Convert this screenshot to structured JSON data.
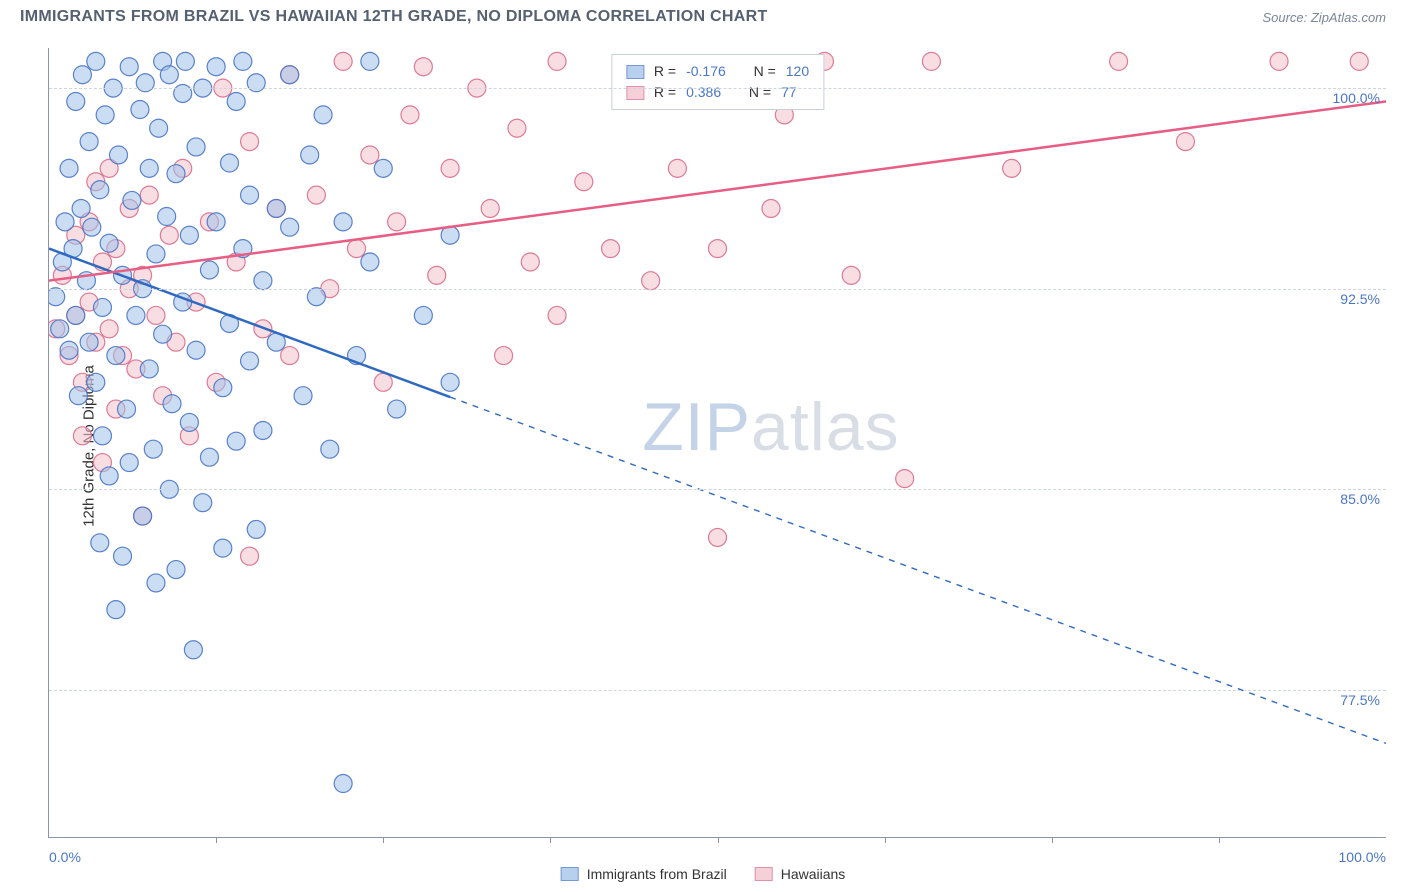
{
  "header": {
    "title": "IMMIGRANTS FROM BRAZIL VS HAWAIIAN 12TH GRADE, NO DIPLOMA CORRELATION CHART",
    "source": "Source: ZipAtlas.com"
  },
  "chart": {
    "type": "scatter",
    "ylabel": "12th Grade, No Diploma",
    "xlim": [
      0,
      100
    ],
    "ylim": [
      72,
      101.5
    ],
    "x_axis_start_label": "0.0%",
    "x_axis_end_label": "100.0%",
    "xtick_positions": [
      12.5,
      25,
      37.5,
      50,
      62.5,
      75,
      87.5
    ],
    "yticks": [
      77.5,
      85.0,
      92.5,
      100.0
    ],
    "ytick_labels": [
      "77.5%",
      "85.0%",
      "92.5%",
      "100.0%"
    ],
    "background_color": "#ffffff",
    "grid_color": "#cfd5df",
    "axis_color": "#8a94a6",
    "tick_label_color": "#4a76c7",
    "watermark_zip": "ZIP",
    "watermark_rest": "atlas",
    "series": [
      {
        "name": "Immigrants from Brazil",
        "key": "brazil",
        "color_fill": "#9ec1e8",
        "color_stroke": "#4a76c7",
        "r_value": "-0.176",
        "n_value": "120",
        "trend": {
          "x1": 0,
          "y1": 94.0,
          "x2": 100,
          "y2": 75.5,
          "solid_until_x": 30,
          "color": "#2f6ac0",
          "width": 2.5
        },
        "points": [
          [
            0.5,
            92.2
          ],
          [
            0.8,
            91.0
          ],
          [
            1.0,
            93.5
          ],
          [
            1.2,
            95.0
          ],
          [
            1.5,
            90.2
          ],
          [
            1.5,
            97.0
          ],
          [
            1.8,
            94.0
          ],
          [
            2.0,
            99.5
          ],
          [
            2.0,
            91.5
          ],
          [
            2.2,
            88.5
          ],
          [
            2.4,
            95.5
          ],
          [
            2.5,
            100.5
          ],
          [
            2.8,
            92.8
          ],
          [
            3.0,
            98.0
          ],
          [
            3.0,
            90.5
          ],
          [
            3.2,
            94.8
          ],
          [
            3.5,
            101.0
          ],
          [
            3.5,
            89.0
          ],
          [
            3.8,
            83.0
          ],
          [
            3.8,
            96.2
          ],
          [
            4.0,
            91.8
          ],
          [
            4.0,
            87.0
          ],
          [
            4.2,
            99.0
          ],
          [
            4.5,
            85.5
          ],
          [
            4.5,
            94.2
          ],
          [
            4.8,
            100.0
          ],
          [
            5.0,
            80.5
          ],
          [
            5.0,
            90.0
          ],
          [
            5.2,
            97.5
          ],
          [
            5.5,
            82.5
          ],
          [
            5.5,
            93.0
          ],
          [
            5.8,
            88.0
          ],
          [
            6.0,
            100.8
          ],
          [
            6.0,
            86.0
          ],
          [
            6.2,
            95.8
          ],
          [
            6.5,
            91.5
          ],
          [
            6.8,
            99.2
          ],
          [
            7.0,
            84.0
          ],
          [
            7.0,
            92.5
          ],
          [
            7.2,
            100.2
          ],
          [
            7.5,
            97.0
          ],
          [
            7.5,
            89.5
          ],
          [
            7.8,
            86.5
          ],
          [
            8.0,
            93.8
          ],
          [
            8.0,
            81.5
          ],
          [
            8.2,
            98.5
          ],
          [
            8.5,
            90.8
          ],
          [
            8.5,
            101.0
          ],
          [
            8.8,
            95.2
          ],
          [
            9.0,
            100.5
          ],
          [
            9.0,
            85.0
          ],
          [
            9.2,
            88.2
          ],
          [
            9.5,
            96.8
          ],
          [
            9.5,
            82.0
          ],
          [
            10.0,
            99.8
          ],
          [
            10.0,
            92.0
          ],
          [
            10.2,
            101.0
          ],
          [
            10.5,
            87.5
          ],
          [
            10.5,
            94.5
          ],
          [
            10.8,
            79.0
          ],
          [
            11.0,
            97.8
          ],
          [
            11.0,
            90.2
          ],
          [
            11.5,
            84.5
          ],
          [
            11.5,
            100.0
          ],
          [
            12.0,
            93.2
          ],
          [
            12.0,
            86.2
          ],
          [
            12.5,
            95.0
          ],
          [
            12.5,
            100.8
          ],
          [
            13.0,
            88.8
          ],
          [
            13.0,
            82.8
          ],
          [
            13.5,
            97.2
          ],
          [
            13.5,
            91.2
          ],
          [
            14.0,
            99.5
          ],
          [
            14.0,
            86.8
          ],
          [
            14.5,
            94.0
          ],
          [
            14.5,
            101.0
          ],
          [
            15.0,
            89.8
          ],
          [
            15.0,
            96.0
          ],
          [
            15.5,
            100.2
          ],
          [
            15.5,
            83.5
          ],
          [
            16.0,
            92.8
          ],
          [
            16.0,
            87.2
          ],
          [
            17.0,
            95.5
          ],
          [
            17.0,
            90.5
          ],
          [
            18.0,
            100.5
          ],
          [
            18.0,
            94.8
          ],
          [
            19.0,
            88.5
          ],
          [
            19.5,
            97.5
          ],
          [
            20.0,
            92.2
          ],
          [
            20.5,
            99.0
          ],
          [
            21.0,
            86.5
          ],
          [
            22.0,
            95.0
          ],
          [
            22.0,
            74.0
          ],
          [
            23.0,
            90.0
          ],
          [
            24.0,
            93.5
          ],
          [
            24.0,
            101.0
          ],
          [
            25.0,
            97.0
          ],
          [
            26.0,
            88.0
          ],
          [
            28.0,
            91.5
          ],
          [
            30.0,
            94.5
          ],
          [
            30.0,
            89.0
          ]
        ]
      },
      {
        "name": "Hawaiians",
        "key": "hawaiians",
        "color_fill": "#f2c1cc",
        "color_stroke": "#d96e8c",
        "r_value": "0.386",
        "n_value": "77",
        "trend": {
          "x1": 0,
          "y1": 92.8,
          "x2": 100,
          "y2": 99.5,
          "solid_until_x": 100,
          "color": "#e85d84",
          "width": 2.5
        },
        "points": [
          [
            0.5,
            91.0
          ],
          [
            1.0,
            93.0
          ],
          [
            1.5,
            90.0
          ],
          [
            2.0,
            94.5
          ],
          [
            2.0,
            91.5
          ],
          [
            2.5,
            89.0
          ],
          [
            2.5,
            87.0
          ],
          [
            3.0,
            92.0
          ],
          [
            3.0,
            95.0
          ],
          [
            3.5,
            90.5
          ],
          [
            3.5,
            96.5
          ],
          [
            4.0,
            86.0
          ],
          [
            4.0,
            93.5
          ],
          [
            4.5,
            91.0
          ],
          [
            4.5,
            97.0
          ],
          [
            5.0,
            88.0
          ],
          [
            5.0,
            94.0
          ],
          [
            5.5,
            90.0
          ],
          [
            6.0,
            92.5
          ],
          [
            6.0,
            95.5
          ],
          [
            6.5,
            89.5
          ],
          [
            7.0,
            93.0
          ],
          [
            7.0,
            84.0
          ],
          [
            7.5,
            96.0
          ],
          [
            8.0,
            91.5
          ],
          [
            8.5,
            88.5
          ],
          [
            9.0,
            94.5
          ],
          [
            9.5,
            90.5
          ],
          [
            10.0,
            97.0
          ],
          [
            10.5,
            87.0
          ],
          [
            11.0,
            92.0
          ],
          [
            12.0,
            95.0
          ],
          [
            12.5,
            89.0
          ],
          [
            13.0,
            100.0
          ],
          [
            14.0,
            93.5
          ],
          [
            15.0,
            98.0
          ],
          [
            15.0,
            82.5
          ],
          [
            16.0,
            91.0
          ],
          [
            17.0,
            95.5
          ],
          [
            18.0,
            100.5
          ],
          [
            18.0,
            90.0
          ],
          [
            20.0,
            96.0
          ],
          [
            21.0,
            92.5
          ],
          [
            22.0,
            101.0
          ],
          [
            23.0,
            94.0
          ],
          [
            24.0,
            97.5
          ],
          [
            25.0,
            89.0
          ],
          [
            26.0,
            95.0
          ],
          [
            27.0,
            99.0
          ],
          [
            28.0,
            100.8
          ],
          [
            29.0,
            93.0
          ],
          [
            30.0,
            97.0
          ],
          [
            32.0,
            100.0
          ],
          [
            33.0,
            95.5
          ],
          [
            34.0,
            90.0
          ],
          [
            35.0,
            98.5
          ],
          [
            36.0,
            93.5
          ],
          [
            38.0,
            91.5
          ],
          [
            38.0,
            101.0
          ],
          [
            40.0,
            96.5
          ],
          [
            42.0,
            94.0
          ],
          [
            45.0,
            92.8
          ],
          [
            47.0,
            97.0
          ],
          [
            50.0,
            94.0
          ],
          [
            50.0,
            83.2
          ],
          [
            54.0,
            95.5
          ],
          [
            55.0,
            99.0
          ],
          [
            58.0,
            101.0
          ],
          [
            60.0,
            93.0
          ],
          [
            64.0,
            85.4
          ],
          [
            66.0,
            101.0
          ],
          [
            72.0,
            97.0
          ],
          [
            80.0,
            101.0
          ],
          [
            85.0,
            98.0
          ],
          [
            92.0,
            101.0
          ],
          [
            98.0,
            101.0
          ]
        ]
      }
    ],
    "legend_top": {
      "r_label": "R =",
      "n_label": "N ="
    },
    "footer_legend": {
      "brazil_label": "Immigrants from Brazil",
      "hawaiians_label": "Hawaiians"
    }
  }
}
